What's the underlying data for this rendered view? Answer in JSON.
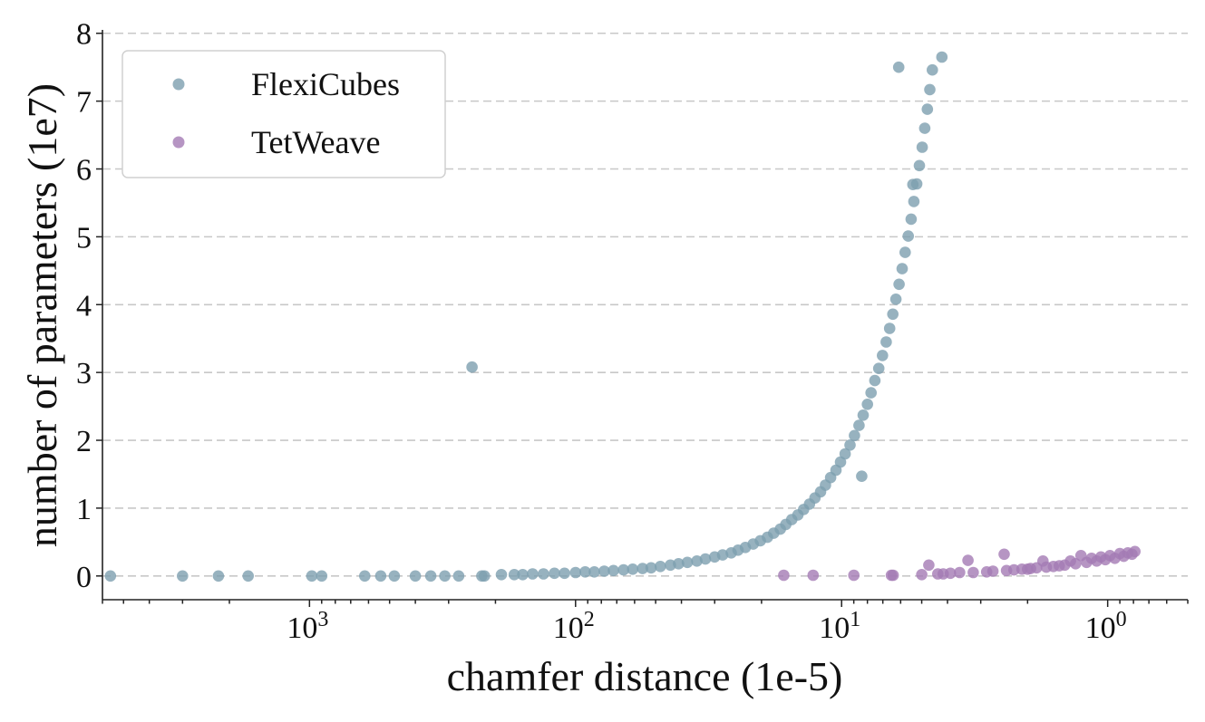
{
  "chart_data": {
    "type": "scatter",
    "title": "",
    "xlabel": "chamfer distance (1e-5)",
    "ylabel": "number of parameters (1e7)",
    "x_scale": "log",
    "x_inverted": true,
    "xlim": [
      6000,
      0.5
    ],
    "ylim": [
      -0.35,
      8.05
    ],
    "x_ticks": [
      {
        "value": 1000,
        "label": "10",
        "exp": "3"
      },
      {
        "value": 100,
        "label": "10",
        "exp": "2"
      },
      {
        "value": 10,
        "label": "10",
        "exp": "1"
      },
      {
        "value": 1,
        "label": "10",
        "exp": "0"
      }
    ],
    "y_ticks": [
      0,
      1,
      2,
      3,
      4,
      5,
      6,
      7,
      8
    ],
    "grid": "horizontal-dashed",
    "legend": {
      "position": "top-left"
    },
    "series": [
      {
        "name": "FlexiCubes",
        "color": "#7d9faf",
        "points": [
          [
            5600,
            0
          ],
          [
            3000,
            0
          ],
          [
            2200,
            0
          ],
          [
            1700,
            0
          ],
          [
            980,
            0
          ],
          [
            900,
            0
          ],
          [
            620,
            0
          ],
          [
            540,
            0
          ],
          [
            480,
            0
          ],
          [
            400,
            0
          ],
          [
            350,
            0
          ],
          [
            310,
            0
          ],
          [
            275,
            0
          ],
          [
            245,
            3.08
          ],
          [
            225,
            0
          ],
          [
            220,
            0
          ],
          [
            190,
            0.02
          ],
          [
            170,
            0.02
          ],
          [
            158,
            0.02
          ],
          [
            145,
            0.03
          ],
          [
            132,
            0.03
          ],
          [
            120,
            0.04
          ],
          [
            110,
            0.04
          ],
          [
            100,
            0.05
          ],
          [
            92,
            0.06
          ],
          [
            85,
            0.06
          ],
          [
            78,
            0.07
          ],
          [
            72,
            0.08
          ],
          [
            66,
            0.09
          ],
          [
            61,
            0.1
          ],
          [
            56,
            0.11
          ],
          [
            52,
            0.12
          ],
          [
            48,
            0.14
          ],
          [
            44,
            0.16
          ],
          [
            41,
            0.18
          ],
          [
            38,
            0.2
          ],
          [
            35,
            0.22
          ],
          [
            32.5,
            0.25
          ],
          [
            30,
            0.28
          ],
          [
            28,
            0.31
          ],
          [
            26,
            0.34
          ],
          [
            24.5,
            0.38
          ],
          [
            23,
            0.42
          ],
          [
            21.5,
            0.47
          ],
          [
            20.2,
            0.52
          ],
          [
            19,
            0.57
          ],
          [
            18,
            0.63
          ],
          [
            17,
            0.69
          ],
          [
            16.2,
            0.76
          ],
          [
            15.4,
            0.83
          ],
          [
            14.6,
            0.9
          ],
          [
            13.9,
            0.98
          ],
          [
            13.2,
            1.06
          ],
          [
            12.6,
            1.15
          ],
          [
            12,
            1.24
          ],
          [
            11.5,
            1.34
          ],
          [
            11,
            1.45
          ],
          [
            10.5,
            1.56
          ],
          [
            10.1,
            1.68
          ],
          [
            9.7,
            1.8
          ],
          [
            9.3,
            1.93
          ],
          [
            8.95,
            2.07
          ],
          [
            8.6,
            2.22
          ],
          [
            8.3,
            2.37
          ],
          [
            8,
            2.53
          ],
          [
            7.75,
            2.7
          ],
          [
            7.5,
            2.88
          ],
          [
            7.25,
            3.06
          ],
          [
            7.02,
            3.25
          ],
          [
            6.8,
            3.45
          ],
          [
            6.6,
            3.65
          ],
          [
            6.42,
            3.86
          ],
          [
            6.25,
            4.08
          ],
          [
            6.08,
            4.3
          ],
          [
            5.92,
            4.53
          ],
          [
            5.77,
            4.77
          ],
          [
            5.62,
            5.01
          ],
          [
            5.48,
            5.26
          ],
          [
            5.35,
            5.52
          ],
          [
            5.22,
            5.78
          ],
          [
            5.1,
            6.05
          ],
          [
            4.98,
            6.32
          ],
          [
            4.87,
            6.6
          ],
          [
            4.76,
            6.88
          ],
          [
            4.66,
            7.17
          ],
          [
            4.56,
            7.46
          ],
          [
            6.1,
            7.5
          ],
          [
            4.2,
            7.65
          ],
          [
            5.4,
            5.77
          ],
          [
            8.4,
            1.47
          ]
        ]
      },
      {
        "name": "TetWeave",
        "color": "#a47bb4",
        "points": [
          [
            16.5,
            0.01
          ],
          [
            12.8,
            0.01
          ],
          [
            9.0,
            0.01
          ],
          [
            6.5,
            0.01
          ],
          [
            6.4,
            0.01
          ],
          [
            5.0,
            0.02
          ],
          [
            4.7,
            0.16
          ],
          [
            4.35,
            0.03
          ],
          [
            4.15,
            0.03
          ],
          [
            3.9,
            0.04
          ],
          [
            3.6,
            0.05
          ],
          [
            3.35,
            0.23
          ],
          [
            3.2,
            0.05
          ],
          [
            2.85,
            0.06
          ],
          [
            2.7,
            0.07
          ],
          [
            2.45,
            0.32
          ],
          [
            2.4,
            0.08
          ],
          [
            2.25,
            0.09
          ],
          [
            2.1,
            0.1
          ],
          [
            2.0,
            0.1
          ],
          [
            1.95,
            0.11
          ],
          [
            1.85,
            0.12
          ],
          [
            1.75,
            0.22
          ],
          [
            1.7,
            0.13
          ],
          [
            1.6,
            0.14
          ],
          [
            1.52,
            0.15
          ],
          [
            1.45,
            0.16
          ],
          [
            1.38,
            0.22
          ],
          [
            1.32,
            0.18
          ],
          [
            1.26,
            0.3
          ],
          [
            1.2,
            0.2
          ],
          [
            1.15,
            0.26
          ],
          [
            1.1,
            0.22
          ],
          [
            1.06,
            0.28
          ],
          [
            1.02,
            0.24
          ],
          [
            0.98,
            0.3
          ],
          [
            0.94,
            0.26
          ],
          [
            0.9,
            0.33
          ],
          [
            0.87,
            0.29
          ],
          [
            0.84,
            0.34
          ],
          [
            0.81,
            0.32
          ],
          [
            0.79,
            0.36
          ]
        ]
      }
    ]
  }
}
